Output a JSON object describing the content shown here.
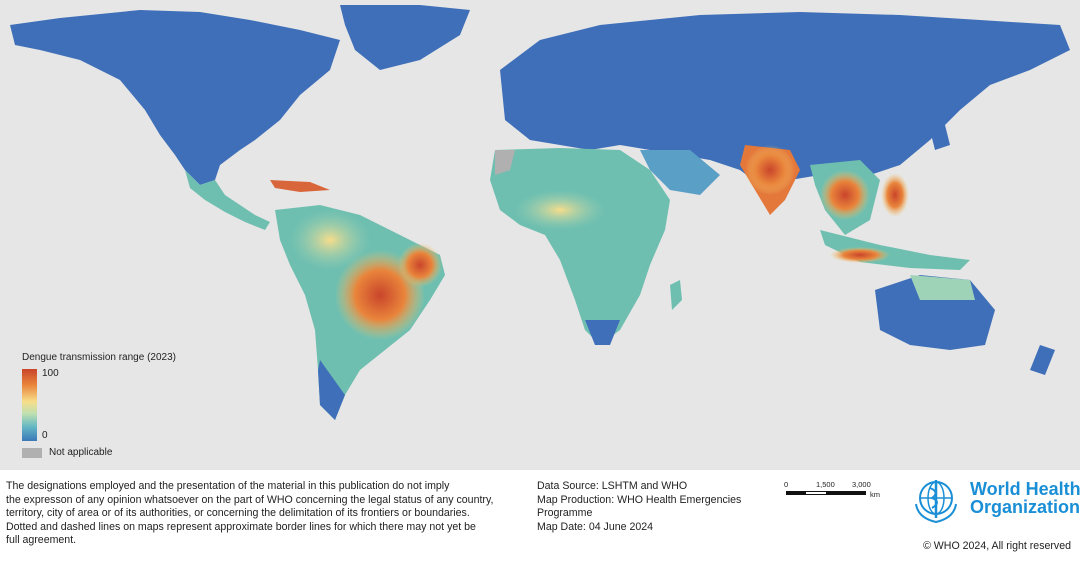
{
  "map": {
    "ocean_color": "#e6e6e6",
    "legend": {
      "title": "Dengue transmission range (2023)",
      "max_label": "100",
      "min_label": "0",
      "na_label": "Not applicable",
      "scale_colors": [
        "#3a78b8",
        "#64b8c4",
        "#bfe0b0",
        "#f7dd8a",
        "#e9843b",
        "#c9452b"
      ],
      "na_color": "#b0b0b0"
    }
  },
  "footer": {
    "disclaimer_lines": [
      "The designations employed and the presentation of the material in this publication do not imply",
      "the expresson of any opinion whatsoever on the part of WHO concerning the legal status of any country,",
      "territory, city of area or of its authorities, or concerning the delimitation of its frontiers or boundaries.",
      "Dotted and dashed lines on maps represent approximate border lines for which there may not yet be",
      "full agreement."
    ],
    "data_source": "Data Source: LSHTM and WHO",
    "map_production": "Map Production: WHO Health Emergencies Programme",
    "map_date": "Map Date: 04 June 2024",
    "scale": {
      "ticks": [
        "0",
        "1,500",
        "3,000"
      ],
      "unit": "km"
    },
    "org_name_line1": "World Health",
    "org_name_line2": "Organization",
    "brand_color": "#1a8fd6",
    "copyright": "© WHO 2024, All right reserved"
  }
}
